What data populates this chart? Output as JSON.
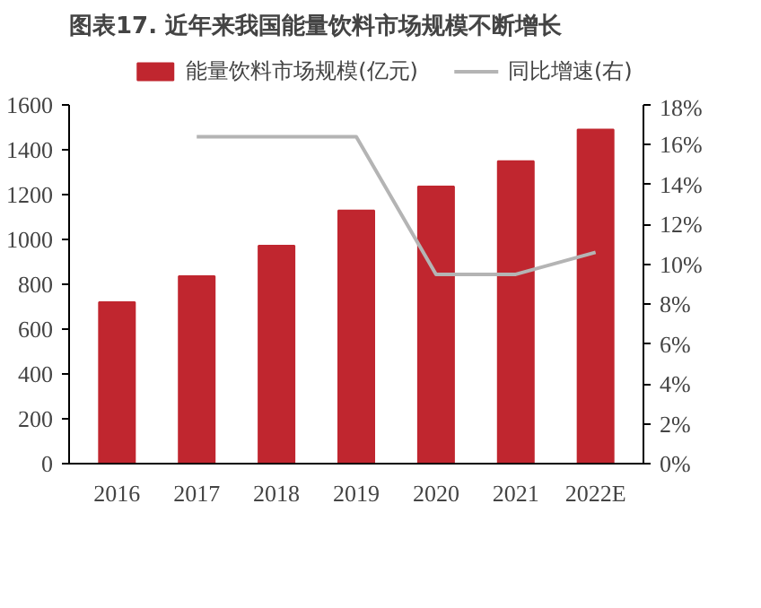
{
  "chart_data": {
    "type": "bar",
    "title": "图表17. 近年来我国能量饮料市场规模不断增长",
    "categories": [
      "2016",
      "2017",
      "2018",
      "2019",
      "2020",
      "2021",
      "2022E"
    ],
    "series": [
      {
        "name": "能量饮料市场规模(亿元)",
        "color": "#c0262f",
        "values": [
          720,
          836,
          972,
          1129,
          1236,
          1349,
          1490
        ]
      },
      {
        "name": "同比增速(右)",
        "type": "line",
        "axis": "y2",
        "color": "#b4b4b4",
        "values": [
          null,
          16.4,
          16.4,
          16.4,
          9.5,
          9.5,
          10.6
        ]
      }
    ],
    "ylim": [
      0,
      1600
    ],
    "yticks": [
      0,
      200,
      400,
      600,
      800,
      1000,
      1200,
      1400,
      1600
    ],
    "y2lim": [
      0,
      18
    ],
    "y2ticks": [
      {
        "value": 0,
        "label": "0%"
      },
      {
        "value": 2,
        "label": "2%"
      },
      {
        "value": 4,
        "label": "4%"
      },
      {
        "value": 6,
        "label": "6%"
      },
      {
        "value": 8,
        "label": "8%"
      },
      {
        "value": 10,
        "label": "10%"
      },
      {
        "value": 12,
        "label": "12%"
      },
      {
        "value": 14,
        "label": "14%"
      },
      {
        "value": 16,
        "label": "16%"
      },
      {
        "value": 18,
        "label": "18%"
      }
    ],
    "grid": false,
    "legend": "top",
    "marker": "none",
    "line_style": "solid"
  }
}
